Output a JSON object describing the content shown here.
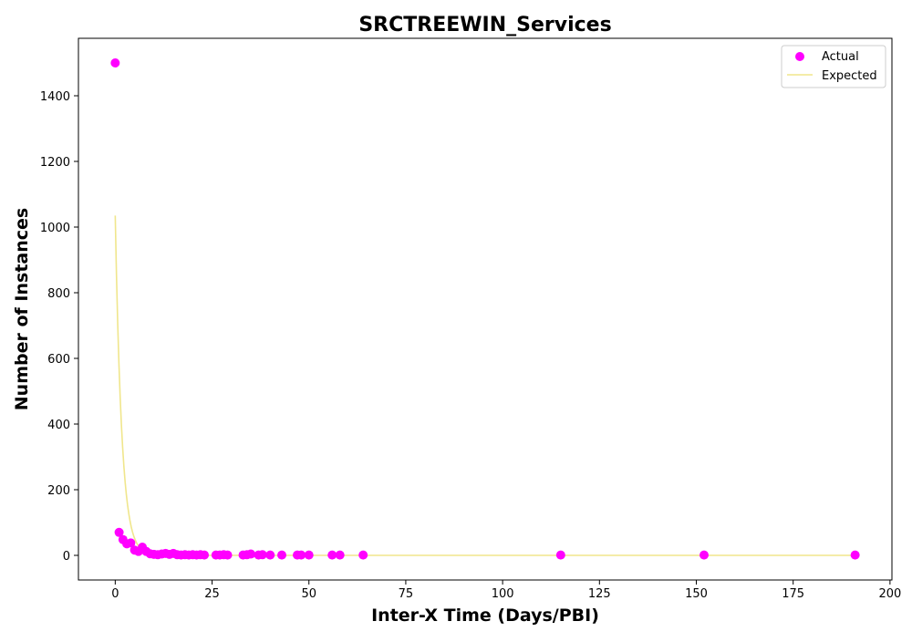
{
  "chart_data": {
    "type": "scatter",
    "title": "SRCTREEWIN_Services",
    "xlabel": "Inter-X Time (Days/PBI)",
    "ylabel": "Number of Instances",
    "xlim": [
      -9.5,
      200.5
    ],
    "ylim": [
      -75,
      1575
    ],
    "x_ticks": [
      0,
      25,
      50,
      75,
      100,
      125,
      150,
      175,
      200
    ],
    "y_ticks": [
      0,
      200,
      400,
      600,
      800,
      1000,
      1200,
      1400
    ],
    "grid": false,
    "legend_position": "top-right",
    "series": [
      {
        "name": "Actual",
        "kind": "scatter",
        "color": "#ff00ff",
        "points": [
          [
            0,
            1500
          ],
          [
            1,
            70
          ],
          [
            2,
            48
          ],
          [
            3,
            35
          ],
          [
            4,
            38
          ],
          [
            5,
            16
          ],
          [
            6,
            12
          ],
          [
            7,
            25
          ],
          [
            8,
            12
          ],
          [
            9,
            5
          ],
          [
            10,
            3
          ],
          [
            11,
            2
          ],
          [
            12,
            4
          ],
          [
            13,
            6
          ],
          [
            14,
            3
          ],
          [
            15,
            6
          ],
          [
            16,
            2
          ],
          [
            17,
            1
          ],
          [
            18,
            2
          ],
          [
            19,
            1
          ],
          [
            20,
            2
          ],
          [
            21,
            1
          ],
          [
            22,
            2
          ],
          [
            23,
            1
          ],
          [
            26,
            1
          ],
          [
            27,
            1
          ],
          [
            28,
            2
          ],
          [
            29,
            1
          ],
          [
            33,
            1
          ],
          [
            34,
            2
          ],
          [
            35,
            4
          ],
          [
            37,
            1
          ],
          [
            38,
            2
          ],
          [
            40,
            1
          ],
          [
            43,
            1
          ],
          [
            47,
            1
          ],
          [
            48,
            1
          ],
          [
            50,
            1
          ],
          [
            56,
            1
          ],
          [
            58,
            1
          ],
          [
            64,
            1
          ],
          [
            115,
            1
          ],
          [
            152,
            1
          ],
          [
            191,
            1
          ]
        ]
      },
      {
        "name": "Expected",
        "kind": "line",
        "color": "#f0e68c",
        "curve": {
          "form": "a*exp(-b*x)",
          "a": 1035,
          "b": 0.6,
          "x_start": 0,
          "x_end": 191
        }
      }
    ]
  }
}
